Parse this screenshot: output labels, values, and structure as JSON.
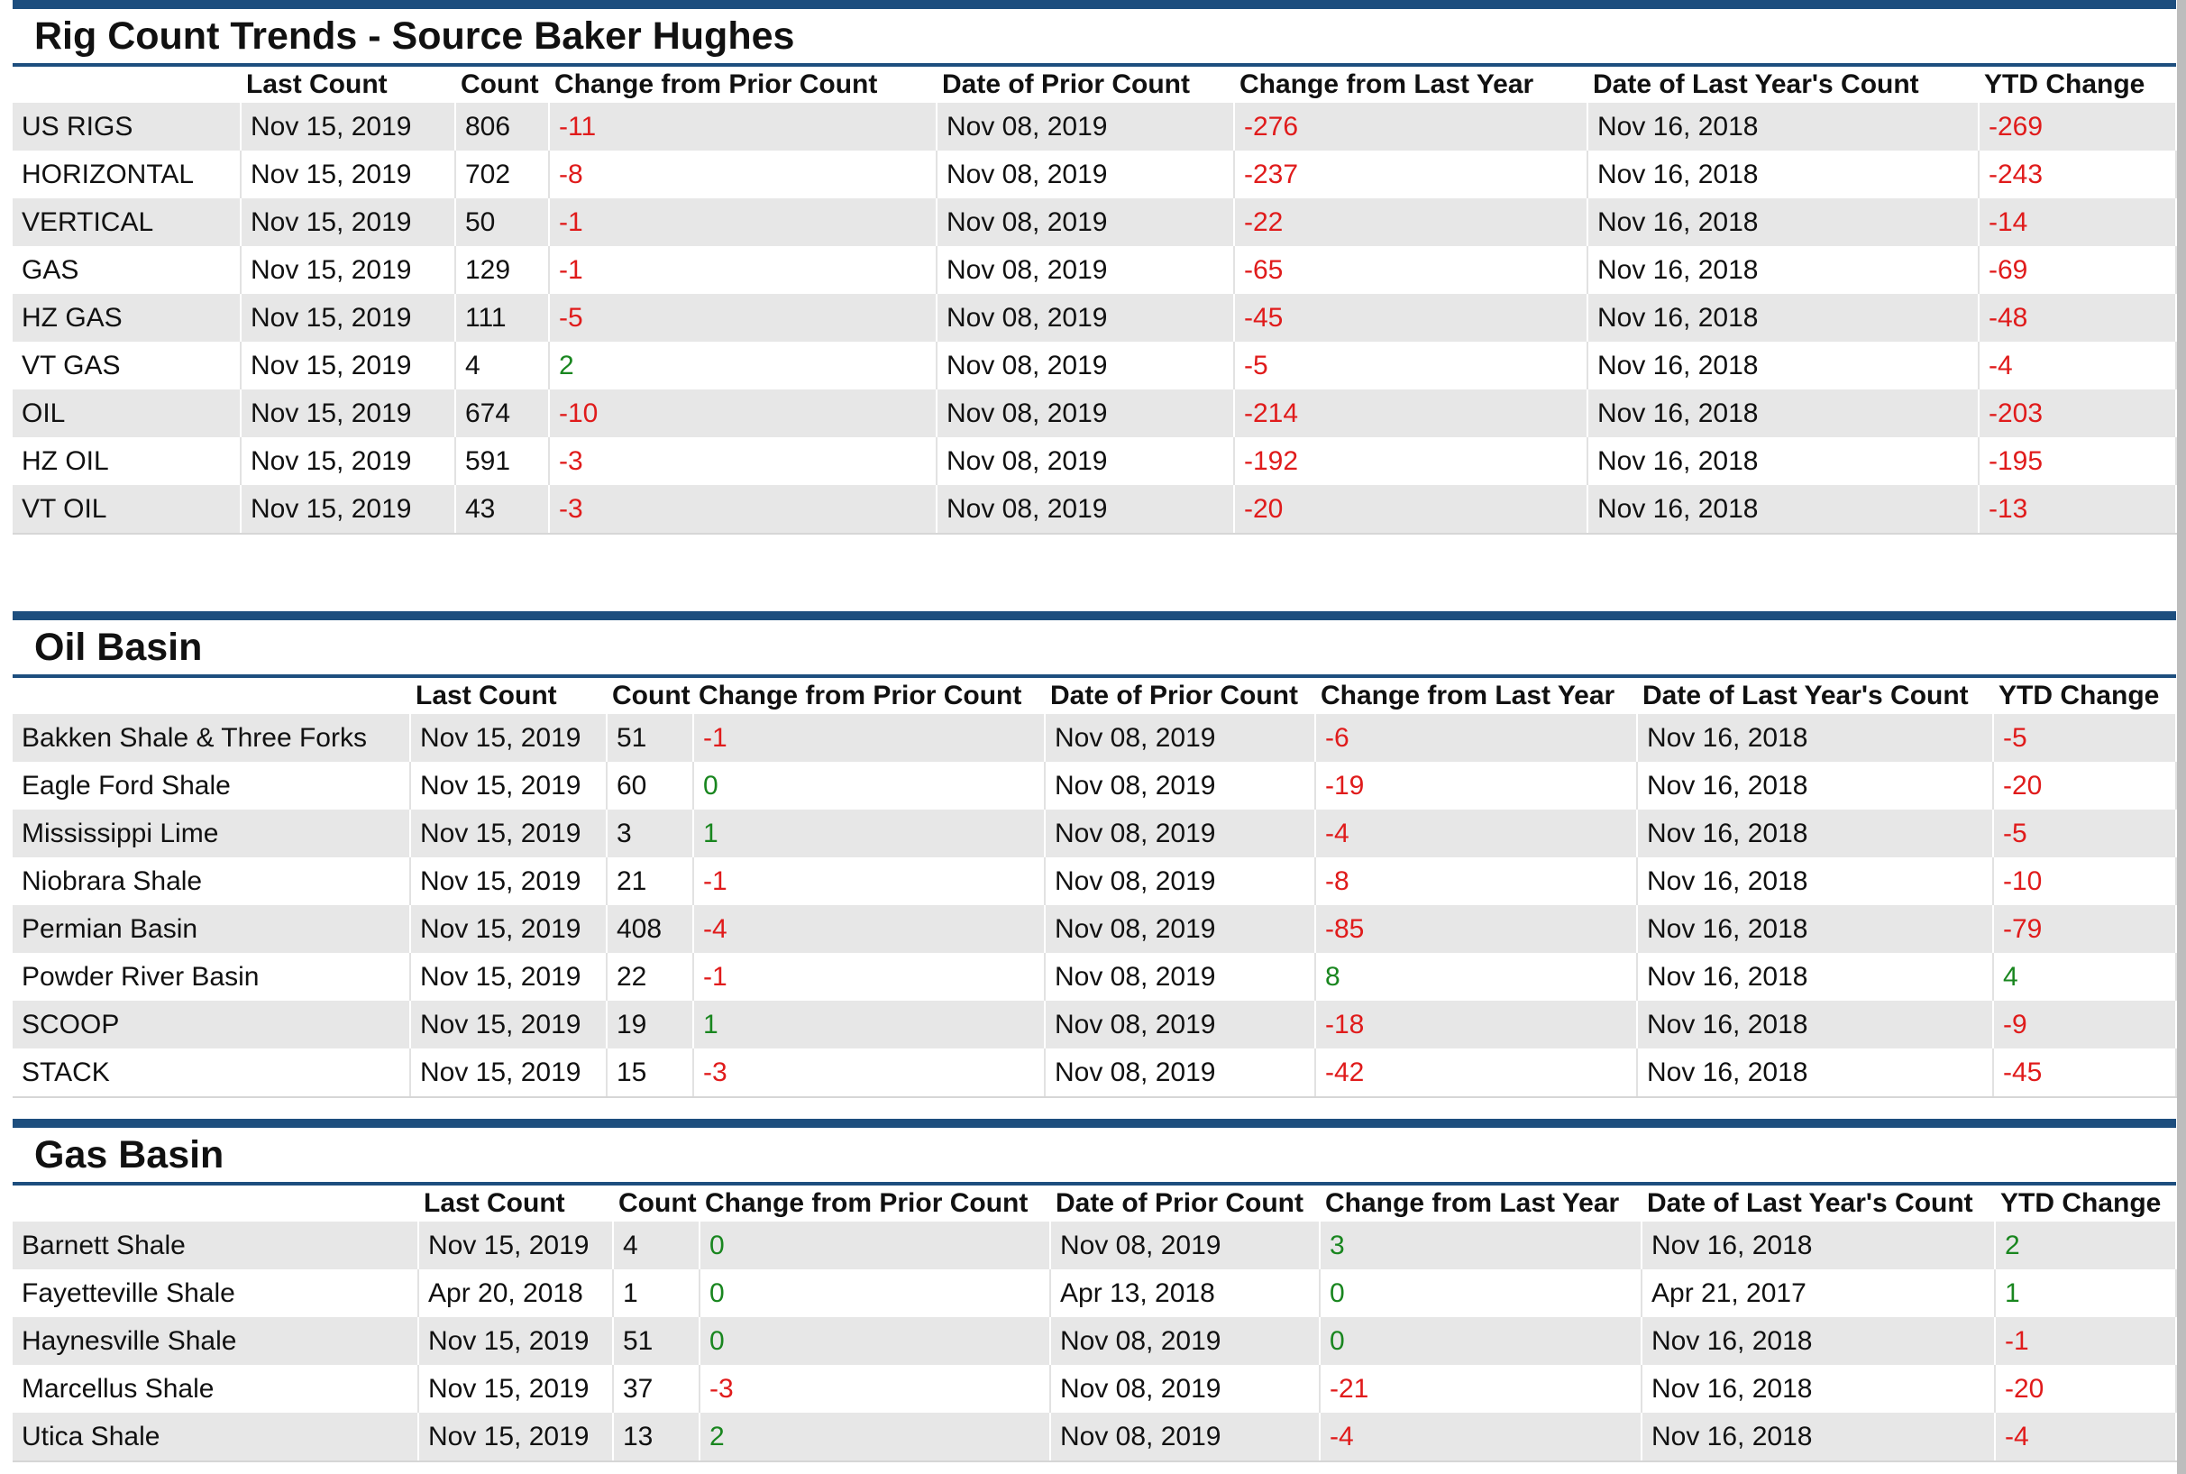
{
  "colors": {
    "accent": "#1d4e7e",
    "negative": "#e01b1b",
    "positive": "#19861f"
  },
  "sections": [
    {
      "title": "Rig Count Trends - Source Baker Hughes",
      "headers": [
        "",
        "Last Count",
        "Count",
        "Change from Prior Count",
        "Date of Prior Count",
        "Change from Last Year",
        "Date of Last Year's Count",
        "YTD Change"
      ],
      "rows": [
        [
          "US RIGS",
          "Nov 15, 2019",
          "806",
          "-11",
          "Nov 08, 2019",
          "-276",
          "Nov 16, 2018",
          "-269"
        ],
        [
          "HORIZONTAL",
          "Nov 15, 2019",
          "702",
          "-8",
          "Nov 08, 2019",
          "-237",
          "Nov 16, 2018",
          "-243"
        ],
        [
          "VERTICAL",
          "Nov 15, 2019",
          "50",
          "-1",
          "Nov 08, 2019",
          "-22",
          "Nov 16, 2018",
          "-14"
        ],
        [
          "GAS",
          "Nov 15, 2019",
          "129",
          "-1",
          "Nov 08, 2019",
          "-65",
          "Nov 16, 2018",
          "-69"
        ],
        [
          "HZ GAS",
          "Nov 15, 2019",
          "111",
          "-5",
          "Nov 08, 2019",
          "-45",
          "Nov 16, 2018",
          "-48"
        ],
        [
          "VT GAS",
          "Nov 15, 2019",
          "4",
          "2",
          "Nov 08, 2019",
          "-5",
          "Nov 16, 2018",
          "-4"
        ],
        [
          "OIL",
          "Nov 15, 2019",
          "674",
          "-10",
          "Nov 08, 2019",
          "-214",
          "Nov 16, 2018",
          "-203"
        ],
        [
          "HZ OIL",
          "Nov 15, 2019",
          "591",
          "-3",
          "Nov 08, 2019",
          "-192",
          "Nov 16, 2018",
          "-195"
        ],
        [
          "VT OIL",
          "Nov 15, 2019",
          "43",
          "-3",
          "Nov 08, 2019",
          "-20",
          "Nov 16, 2018",
          "-13"
        ]
      ]
    },
    {
      "title": "Oil Basin",
      "headers": [
        "",
        "Last Count",
        "Count",
        "Change from Prior Count",
        "Date of Prior Count",
        "Change from Last Year",
        "Date of Last Year's Count",
        "YTD Change"
      ],
      "rows": [
        [
          "Bakken Shale & Three Forks",
          "Nov 15, 2019",
          "51",
          "-1",
          "Nov 08, 2019",
          "-6",
          "Nov 16, 2018",
          "-5"
        ],
        [
          "Eagle Ford Shale",
          "Nov 15, 2019",
          "60",
          "0",
          "Nov 08, 2019",
          "-19",
          "Nov 16, 2018",
          "-20"
        ],
        [
          "Mississippi Lime",
          "Nov 15, 2019",
          "3",
          "1",
          "Nov 08, 2019",
          "-4",
          "Nov 16, 2018",
          "-5"
        ],
        [
          "Niobrara Shale",
          "Nov 15, 2019",
          "21",
          "-1",
          "Nov 08, 2019",
          "-8",
          "Nov 16, 2018",
          "-10"
        ],
        [
          "Permian Basin",
          "Nov 15, 2019",
          "408",
          "-4",
          "Nov 08, 2019",
          "-85",
          "Nov 16, 2018",
          "-79"
        ],
        [
          "Powder River Basin",
          "Nov 15, 2019",
          "22",
          "-1",
          "Nov 08, 2019",
          "8",
          "Nov 16, 2018",
          "4"
        ],
        [
          "SCOOP",
          "Nov 15, 2019",
          "19",
          "1",
          "Nov 08, 2019",
          "-18",
          "Nov 16, 2018",
          "-9"
        ],
        [
          "STACK",
          "Nov 15, 2019",
          "15",
          "-3",
          "Nov 08, 2019",
          "-42",
          "Nov 16, 2018",
          "-45"
        ]
      ]
    },
    {
      "title": "Gas Basin",
      "headers": [
        "",
        "Last Count",
        "Count",
        "Change from Prior Count",
        "Date of Prior Count",
        "Change from Last Year",
        "Date of Last Year's Count",
        "YTD Change"
      ],
      "rows": [
        [
          "Barnett Shale",
          "Nov 15, 2019",
          "4",
          "0",
          "Nov 08, 2019",
          "3",
          "Nov 16, 2018",
          "2"
        ],
        [
          "Fayetteville Shale",
          "Apr 20, 2018",
          "1",
          "0",
          "Apr 13, 2018",
          "0",
          "Apr 21, 2017",
          "1"
        ],
        [
          "Haynesville Shale",
          "Nov 15, 2019",
          "51",
          "0",
          "Nov 08, 2019",
          "0",
          "Nov 16, 2018",
          "-1"
        ],
        [
          "Marcellus Shale",
          "Nov 15, 2019",
          "37",
          "-3",
          "Nov 08, 2019",
          "-21",
          "Nov 16, 2018",
          "-20"
        ],
        [
          "Utica Shale",
          "Nov 15, 2019",
          "13",
          "2",
          "Nov 08, 2019",
          "-4",
          "Nov 16, 2018",
          "-4"
        ]
      ]
    }
  ]
}
